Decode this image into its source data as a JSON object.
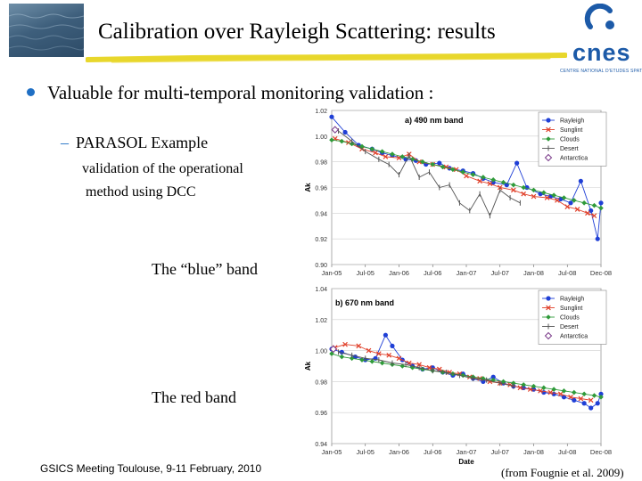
{
  "slide": {
    "title": "Calibration over Rayleigh Scattering: results",
    "bullet": "Valuable for multi-temporal monitoring validation :",
    "sub_dash": "–",
    "sub_item": "PARASOL Example",
    "desc_line1": "validation of the operational",
    "desc_line2": "method using DCC",
    "blue_band_label": "The “blue” band",
    "red_band_label": "The red band",
    "footer": "GSICS Meeting Toulouse, 9-11 February, 2010",
    "source": "(from Fougnie et al. 2009)",
    "logo_text": "cnes",
    "logo_subtext": "CENTRE NATIONAL D'ETUDES SPATIALES"
  },
  "colors": {
    "accent": "#1f6fc4",
    "highlighter": "#e8d72c",
    "logo": "#1c5aa8"
  },
  "chart_data": [
    {
      "type": "line",
      "title": "a) 490 nm band",
      "xlabel": "",
      "ylabel": "Ak",
      "ylim": [
        0.9,
        1.02
      ],
      "yticks": [
        "0.90",
        "0.92",
        "0.94",
        "0.96",
        "0.98",
        "1.00",
        "1.02"
      ],
      "xticks": [
        "Jan-05",
        "Jul-05",
        "Jan-06",
        "Jul-06",
        "Jan-07",
        "Jul-07",
        "Jan-08",
        "Jul-08",
        "Dec-08"
      ],
      "legend_position": "top-right",
      "series": [
        {
          "name": "Rayleigh",
          "color": "#1f3fd6",
          "marker": "circle",
          "line": true,
          "x": [
            0.0,
            0.4,
            0.8,
            1.2,
            1.5,
            1.8,
            2.2,
            2.5,
            2.8,
            3.2,
            3.5,
            3.9,
            4.2,
            4.5,
            4.8,
            5.2,
            5.5,
            5.8,
            6.2,
            6.5,
            6.8,
            7.1,
            7.4,
            7.7,
            7.9,
            8.0
          ],
          "y": [
            1.015,
            1.003,
            0.993,
            0.99,
            0.987,
            0.985,
            0.982,
            0.981,
            0.978,
            0.979,
            0.975,
            0.973,
            0.971,
            0.967,
            0.964,
            0.962,
            0.979,
            0.96,
            0.955,
            0.953,
            0.951,
            0.948,
            0.965,
            0.942,
            0.92,
            0.948
          ]
        },
        {
          "name": "Sunglint",
          "color": "#e0402a",
          "marker": "cross",
          "line": true,
          "x": [
            0.1,
            0.5,
            0.9,
            1.3,
            1.6,
            2.0,
            2.3,
            2.6,
            3.0,
            3.4,
            3.7,
            4.0,
            4.4,
            4.7,
            5.0,
            5.4,
            5.7,
            6.0,
            6.4,
            6.7,
            7.0,
            7.3,
            7.6,
            7.8
          ],
          "y": [
            0.998,
            0.995,
            0.99,
            0.987,
            0.984,
            0.983,
            0.986,
            0.98,
            0.978,
            0.976,
            0.974,
            0.969,
            0.965,
            0.963,
            0.96,
            0.958,
            0.955,
            0.953,
            0.952,
            0.95,
            0.945,
            0.943,
            0.94,
            0.938
          ]
        },
        {
          "name": "Clouds",
          "color": "#2f9a3a",
          "marker": "diamond",
          "line": true,
          "x": [
            0.0,
            0.3,
            0.6,
            0.9,
            1.2,
            1.5,
            1.8,
            2.1,
            2.4,
            2.7,
            3.0,
            3.3,
            3.6,
            3.9,
            4.2,
            4.5,
            4.8,
            5.1,
            5.4,
            5.7,
            6.0,
            6.3,
            6.6,
            6.9,
            7.2,
            7.5,
            7.8,
            8.0
          ],
          "y": [
            0.997,
            0.996,
            0.994,
            0.992,
            0.99,
            0.988,
            0.986,
            0.984,
            0.982,
            0.98,
            0.978,
            0.976,
            0.974,
            0.972,
            0.97,
            0.968,
            0.966,
            0.964,
            0.962,
            0.96,
            0.958,
            0.956,
            0.954,
            0.952,
            0.95,
            0.948,
            0.946,
            0.944
          ]
        },
        {
          "name": "Desert",
          "color": "#555555",
          "marker": "tick",
          "line": true,
          "x": [
            0.2,
            0.6,
            1.0,
            1.4,
            1.7,
            2.0,
            2.3,
            2.6,
            2.9,
            3.2,
            3.5,
            3.8,
            4.1,
            4.4,
            4.7,
            5.0,
            5.3,
            5.6
          ],
          "y": [
            1.004,
            0.996,
            0.988,
            0.982,
            0.978,
            0.97,
            0.985,
            0.968,
            0.972,
            0.96,
            0.962,
            0.948,
            0.942,
            0.955,
            0.938,
            0.958,
            0.952,
            0.948
          ]
        },
        {
          "name": "Antarctica",
          "color": "#7a3a8a",
          "marker": "open-diamond",
          "line": false,
          "x": [
            0.1
          ],
          "y": [
            1.005
          ]
        }
      ]
    },
    {
      "type": "line",
      "title": "b) 670 nm band",
      "xlabel": "Date",
      "ylabel": "Ak",
      "ylim": [
        0.94,
        1.04
      ],
      "yticks": [
        "0.94",
        "0.96",
        "0.98",
        "1.00",
        "1.02",
        "1.04"
      ],
      "xticks": [
        "Jan-05",
        "Jul-05",
        "Jan-06",
        "Jul-06",
        "Jan-07",
        "Jul-07",
        "Jan-08",
        "Jul-08",
        "Dec-08"
      ],
      "legend_position": "top-right",
      "series": [
        {
          "name": "Rayleigh",
          "color": "#1f3fd6",
          "marker": "circle",
          "line": true,
          "x": [
            0.0,
            0.3,
            0.7,
            1.0,
            1.3,
            1.6,
            1.8,
            2.1,
            2.4,
            2.7,
            3.0,
            3.3,
            3.6,
            3.9,
            4.2,
            4.5,
            4.8,
            5.1,
            5.4,
            5.7,
            6.0,
            6.3,
            6.6,
            6.9,
            7.2,
            7.5,
            7.7,
            7.9,
            8.0
          ],
          "y": [
            1.001,
            0.999,
            0.996,
            0.994,
            0.995,
            1.01,
            1.003,
            0.994,
            0.99,
            0.988,
            0.989,
            0.986,
            0.984,
            0.985,
            0.982,
            0.98,
            0.983,
            0.979,
            0.977,
            0.976,
            0.975,
            0.973,
            0.972,
            0.97,
            0.968,
            0.966,
            0.963,
            0.966,
            0.972
          ]
        },
        {
          "name": "Sunglint",
          "color": "#e0402a",
          "marker": "cross",
          "line": true,
          "x": [
            0.1,
            0.4,
            0.8,
            1.1,
            1.4,
            1.7,
            2.0,
            2.3,
            2.6,
            2.9,
            3.2,
            3.5,
            3.8,
            4.1,
            4.4,
            4.7,
            5.0,
            5.3,
            5.6,
            5.9,
            6.2,
            6.5,
            6.8,
            7.1,
            7.4,
            7.7
          ],
          "y": [
            1.002,
            1.004,
            1.003,
            1.0,
            0.998,
            0.997,
            0.995,
            0.992,
            0.991,
            0.989,
            0.988,
            0.986,
            0.985,
            0.983,
            0.982,
            0.98,
            0.979,
            0.978,
            0.976,
            0.975,
            0.974,
            0.973,
            0.972,
            0.97,
            0.969,
            0.968
          ]
        },
        {
          "name": "Clouds",
          "color": "#2f9a3a",
          "marker": "diamond",
          "line": true,
          "x": [
            0.0,
            0.3,
            0.6,
            0.9,
            1.2,
            1.5,
            1.8,
            2.1,
            2.4,
            2.7,
            3.0,
            3.3,
            3.6,
            3.9,
            4.2,
            4.5,
            4.8,
            5.1,
            5.4,
            5.7,
            6.0,
            6.3,
            6.6,
            6.9,
            7.2,
            7.5,
            7.8,
            8.0
          ],
          "y": [
            0.998,
            0.996,
            0.995,
            0.994,
            0.993,
            0.992,
            0.991,
            0.99,
            0.989,
            0.988,
            0.987,
            0.986,
            0.985,
            0.984,
            0.983,
            0.982,
            0.981,
            0.98,
            0.979,
            0.978,
            0.977,
            0.976,
            0.975,
            0.974,
            0.973,
            0.972,
            0.971,
            0.97
          ]
        },
        {
          "name": "Desert",
          "color": "#555555",
          "marker": "tick",
          "line": true,
          "x": [
            0.2,
            0.6,
            1.0,
            1.4,
            1.8,
            2.2,
            2.6,
            3.0,
            3.4,
            3.8,
            4.2,
            4.6,
            5.0,
            5.4
          ],
          "y": [
            0.999,
            0.997,
            0.995,
            0.994,
            0.992,
            0.991,
            0.989,
            0.987,
            0.986,
            0.984,
            0.982,
            0.981,
            0.979,
            0.977
          ]
        },
        {
          "name": "Antarctica",
          "color": "#7a3a8a",
          "marker": "open-diamond",
          "line": false,
          "x": [
            0.05
          ],
          "y": [
            1.001
          ]
        }
      ]
    }
  ]
}
